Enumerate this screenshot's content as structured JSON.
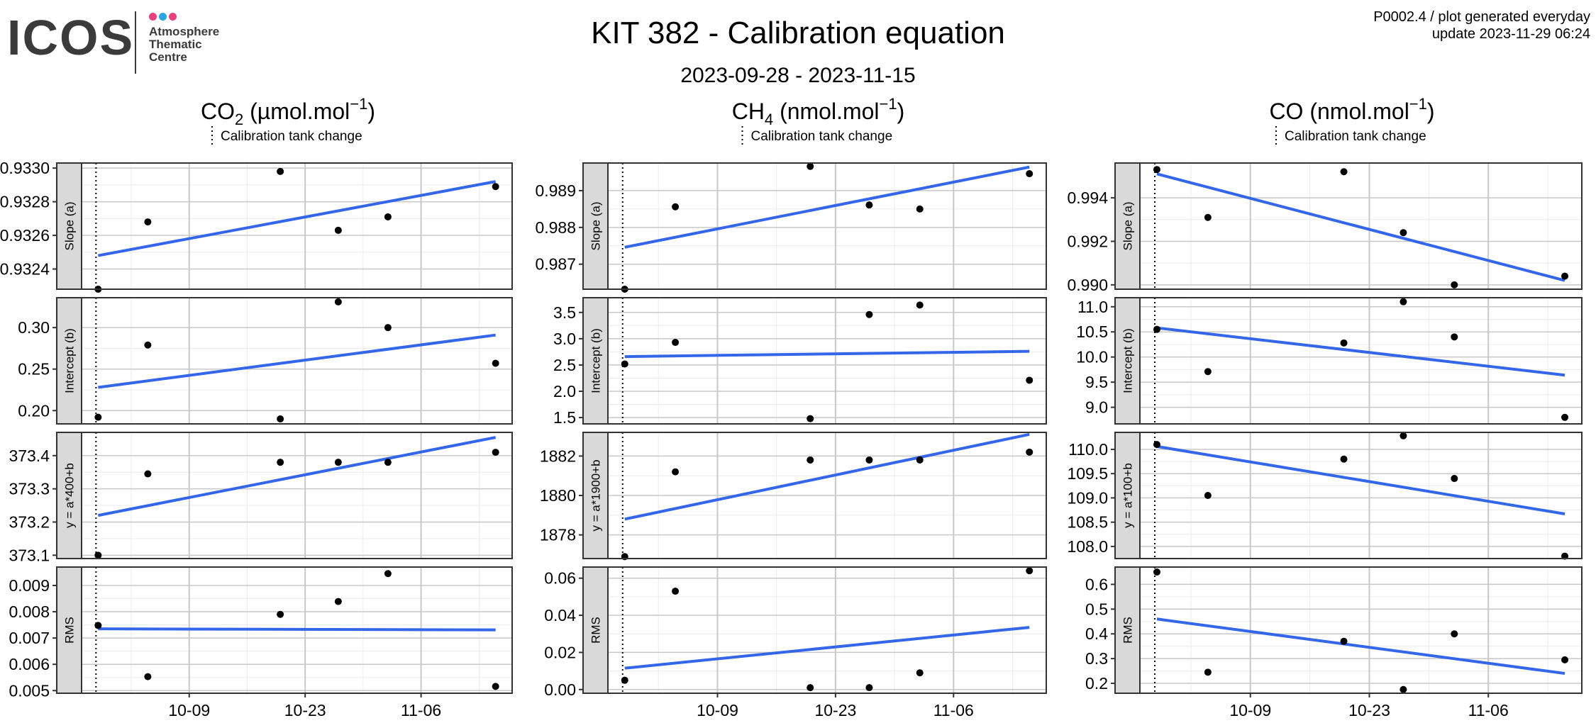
{
  "header": {
    "title": "KIT 382 - Calibration equation",
    "date_range": "2023-09-28 - 2023-11-15",
    "product_code": "P0002.4 / plot generated everyday",
    "update": "update  2023-11-29 06:24"
  },
  "logo": {
    "word": "ICOS",
    "line1": "Atmosphere",
    "line2": "Thematic",
    "line3": "Centre",
    "dot_colors": [
      "#e8417f",
      "#2ba6e0",
      "#e8417f"
    ]
  },
  "colors": {
    "fit_line": "#3366e8",
    "point": "#000000",
    "strip_bg": "#d9d9d9",
    "grid_major": "#c8c8c8",
    "grid_minor": "#ececec"
  },
  "chart_data": {
    "type": "scatter",
    "x_tick_labels": [
      "10-09",
      "10-23",
      "11-06"
    ],
    "calibration_tank_change_label": "Calibration tank change",
    "columns": [
      {
        "title_main": "CO",
        "title_sub": "2",
        "title_unit": " (µmol.mol",
        "title_sup": "−1",
        "title_close": ")",
        "rows": [
          {
            "strip": "Slope (a)",
            "ylim": [
              0.93228,
              0.93303
            ],
            "ticks": [
              0.9324,
              0.9326,
              0.9328,
              0.933
            ],
            "tick_labels": [
              "0.9324",
              "0.9326",
              "0.9328",
              "0.9330"
            ],
            "points": [
              [
                "2023-09-28",
                0.93228
              ],
              [
                "2023-10-04",
                0.93268
              ],
              [
                "2023-10-20",
                0.93298
              ],
              [
                "2023-10-27",
                0.93263
              ],
              [
                "2023-11-02",
                0.93271
              ],
              [
                "2023-11-15",
                0.93289
              ]
            ],
            "fit": [
              0.93248,
              0.93292
            ]
          },
          {
            "strip": "Intercept (b)",
            "ylim": [
              0.184,
              0.336
            ],
            "ticks": [
              0.2,
              0.25,
              0.3
            ],
            "tick_labels": [
              "0.20",
              "0.25",
              "0.30"
            ],
            "points": [
              [
                "2023-09-28",
                0.192
              ],
              [
                "2023-10-04",
                0.279
              ],
              [
                "2023-10-20",
                0.19
              ],
              [
                "2023-10-27",
                0.331
              ],
              [
                "2023-11-02",
                0.3
              ],
              [
                "2023-11-15",
                0.257
              ]
            ],
            "fit": [
              0.228,
              0.291
            ]
          },
          {
            "strip": "y = a*400+b",
            "ylim": [
              373.09,
              373.47
            ],
            "ticks": [
              373.1,
              373.2,
              373.3,
              373.4
            ],
            "tick_labels": [
              "373.1",
              "373.2",
              "373.3",
              "373.4"
            ],
            "points": [
              [
                "2023-09-28",
                373.1
              ],
              [
                "2023-10-04",
                373.345
              ],
              [
                "2023-10-20",
                373.38
              ],
              [
                "2023-10-27",
                373.38
              ],
              [
                "2023-11-02",
                373.38
              ],
              [
                "2023-11-15",
                373.41
              ]
            ],
            "fit": [
              373.22,
              373.455
            ]
          },
          {
            "strip": "RMS",
            "ylim": [
              0.0049,
              0.0097
            ],
            "ticks": [
              0.005,
              0.006,
              0.007,
              0.008,
              0.009
            ],
            "tick_labels": [
              "0.005",
              "0.006",
              "0.007",
              "0.008",
              "0.009"
            ],
            "points": [
              [
                "2023-09-28",
                0.00748
              ],
              [
                "2023-10-04",
                0.00553
              ],
              [
                "2023-10-20",
                0.0079
              ],
              [
                "2023-10-27",
                0.00839
              ],
              [
                "2023-11-02",
                0.00945
              ],
              [
                "2023-11-15",
                0.00516
              ]
            ],
            "fit": [
              0.00735,
              0.00731
            ]
          }
        ]
      },
      {
        "title_main": "CH",
        "title_sub": "4",
        "title_unit": " (nmol.mol",
        "title_sup": "−1",
        "title_close": ")",
        "rows": [
          {
            "strip": "Slope (a)",
            "ylim": [
              0.98632,
              0.98975
            ],
            "ticks": [
              0.987,
              0.988,
              0.989
            ],
            "tick_labels": [
              "0.987",
              "0.988",
              "0.989"
            ],
            "points": [
              [
                "2023-09-28",
                0.98632
              ],
              [
                "2023-10-04",
                0.98856
              ],
              [
                "2023-10-20",
                0.98966
              ],
              [
                "2023-10-27",
                0.98861
              ],
              [
                "2023-11-02",
                0.9885
              ],
              [
                "2023-11-15",
                0.98946
              ]
            ],
            "fit": [
              0.98746,
              0.98964
            ]
          },
          {
            "strip": "Intercept (b)",
            "ylim": [
              1.38,
              3.78
            ],
            "ticks": [
              1.5,
              2.0,
              2.5,
              3.0,
              3.5
            ],
            "tick_labels": [
              "1.5",
              "2.0",
              "2.5",
              "3.0",
              "3.5"
            ],
            "points": [
              [
                "2023-09-28",
                2.52
              ],
              [
                "2023-10-04",
                2.93
              ],
              [
                "2023-10-20",
                1.48
              ],
              [
                "2023-10-27",
                3.46
              ],
              [
                "2023-11-02",
                3.64
              ],
              [
                "2023-11-15",
                2.21
              ]
            ],
            "fit": [
              2.66,
              2.76
            ]
          },
          {
            "strip": "y = a*1900+b",
            "ylim": [
              1876.8,
              1883.2
            ],
            "ticks": [
              1878,
              1880,
              1882
            ],
            "tick_labels": [
              "1878",
              "1880",
              "1882"
            ],
            "points": [
              [
                "2023-09-28",
                1876.9
              ],
              [
                "2023-10-04",
                1881.2
              ],
              [
                "2023-10-20",
                1881.8
              ],
              [
                "2023-10-27",
                1881.8
              ],
              [
                "2023-11-02",
                1881.8
              ],
              [
                "2023-11-15",
                1882.2
              ]
            ],
            "fit": [
              1878.8,
              1883.1
            ]
          },
          {
            "strip": "RMS",
            "ylim": [
              -0.002,
              0.066
            ],
            "ticks": [
              0.0,
              0.02,
              0.04,
              0.06
            ],
            "tick_labels": [
              "0.00",
              "0.02",
              "0.04",
              "0.06"
            ],
            "points": [
              [
                "2023-09-28",
                0.005
              ],
              [
                "2023-10-04",
                0.053
              ],
              [
                "2023-10-20",
                0.001
              ],
              [
                "2023-10-27",
                0.001
              ],
              [
                "2023-11-02",
                0.009
              ],
              [
                "2023-11-15",
                0.064
              ]
            ],
            "fit": [
              0.0115,
              0.0335
            ]
          }
        ]
      },
      {
        "title_main": "CO",
        "title_sub": "",
        "title_unit": " (nmol.mol",
        "title_sup": "−1",
        "title_close": ")",
        "rows": [
          {
            "strip": "Slope (a)",
            "ylim": [
              0.9898,
              0.9956
            ],
            "ticks": [
              0.99,
              0.992,
              0.994
            ],
            "tick_labels": [
              "0.990",
              "0.992",
              "0.994"
            ],
            "points": [
              [
                "2023-09-28",
                0.9953
              ],
              [
                "2023-10-04",
                0.9931
              ],
              [
                "2023-10-20",
                0.9952
              ],
              [
                "2023-10-27",
                0.9924
              ],
              [
                "2023-11-02",
                0.99
              ],
              [
                "2023-11-15",
                0.9904
              ]
            ],
            "fit": [
              0.9951,
              0.9902
            ]
          },
          {
            "strip": "Intercept (b)",
            "ylim": [
              8.67,
              11.18
            ],
            "ticks": [
              9.0,
              9.5,
              10.0,
              10.5,
              11.0
            ],
            "tick_labels": [
              "9.0",
              "9.5",
              "10.0",
              "10.5",
              "11.0"
            ],
            "points": [
              [
                "2023-09-28",
                10.55
              ],
              [
                "2023-10-04",
                9.71
              ],
              [
                "2023-10-20",
                10.28
              ],
              [
                "2023-10-27",
                11.1
              ],
              [
                "2023-11-02",
                10.4
              ],
              [
                "2023-11-15",
                8.8
              ]
            ],
            "fit": [
              10.58,
              9.64
            ]
          },
          {
            "strip": "y = a*100+b",
            "ylim": [
              107.75,
              110.35
            ],
            "ticks": [
              108.0,
              108.5,
              109.0,
              109.5,
              110.0
            ],
            "tick_labels": [
              "108.0",
              "108.5",
              "109.0",
              "109.5",
              "110.0"
            ],
            "points": [
              [
                "2023-09-28",
                110.1
              ],
              [
                "2023-10-04",
                109.05
              ],
              [
                "2023-10-20",
                109.8
              ],
              [
                "2023-10-27",
                110.28
              ],
              [
                "2023-11-02",
                109.4
              ],
              [
                "2023-11-15",
                107.8
              ]
            ],
            "fit": [
              110.06,
              108.67
            ]
          },
          {
            "strip": "RMS",
            "ylim": [
              0.16,
              0.67
            ],
            "ticks": [
              0.2,
              0.3,
              0.4,
              0.5,
              0.6
            ],
            "tick_labels": [
              "0.2",
              "0.3",
              "0.4",
              "0.5",
              "0.6"
            ],
            "points": [
              [
                "2023-09-28",
                0.65
              ],
              [
                "2023-10-04",
                0.245
              ],
              [
                "2023-10-20",
                0.37
              ],
              [
                "2023-10-27",
                0.175
              ],
              [
                "2023-11-02",
                0.4
              ],
              [
                "2023-11-15",
                0.295
              ]
            ],
            "fit": [
              0.46,
              0.24
            ]
          }
        ]
      }
    ]
  }
}
